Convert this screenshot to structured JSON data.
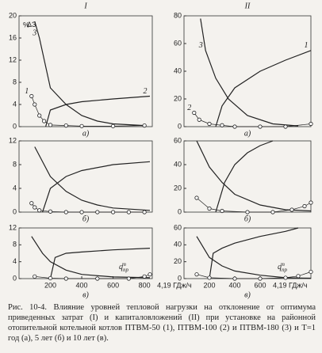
{
  "chart_data": [
    {
      "type": "line",
      "title": "I",
      "subtitle": "а)",
      "ylabel": "%",
      "annotations": [
        {
          "text": "ΔЗ"
        }
      ],
      "xlim": [
        0,
        850
      ],
      "ylim": [
        0,
        20
      ],
      "yticks": [
        0,
        4,
        8,
        12,
        16,
        20
      ],
      "series": [
        {
          "name": "3",
          "color": "#222",
          "x": [
            100,
            130,
            200,
            300,
            400,
            500,
            600,
            800
          ],
          "values": [
            19,
            16,
            7,
            4,
            2,
            1,
            0.5,
            0.2
          ]
        },
        {
          "name": "2",
          "color": "#222",
          "x": [
            170,
            200,
            300,
            400,
            600,
            835
          ],
          "values": [
            0,
            3,
            4,
            4.5,
            5,
            5.5
          ]
        },
        {
          "name": "1",
          "color": "#222",
          "marker": "circle",
          "x": [
            80,
            100,
            130,
            160,
            200,
            300,
            400,
            600,
            800
          ],
          "values": [
            5.5,
            4,
            2,
            1,
            0.3,
            0.2,
            0.1,
            0.1,
            0.2
          ]
        }
      ]
    },
    {
      "type": "line",
      "title": "II",
      "subtitle": "а)",
      "xlim": [
        0,
        1000
      ],
      "ylim": [
        0,
        80
      ],
      "yticks": [
        0,
        20,
        40,
        60,
        80
      ],
      "series": [
        {
          "name": "3",
          "color": "#222",
          "x": [
            130,
            170,
            250,
            350,
            500,
            700,
            900
          ],
          "values": [
            78,
            55,
            35,
            20,
            8,
            2,
            0.5
          ]
        },
        {
          "name": "1",
          "color": "#222",
          "x": [
            250,
            300,
            400,
            600,
            800,
            1000
          ],
          "values": [
            0,
            15,
            28,
            40,
            48,
            55
          ]
        },
        {
          "name": "2",
          "color": "#222",
          "marker": "circle",
          "x": [
            80,
            120,
            200,
            300,
            400,
            600,
            800,
            1000
          ],
          "values": [
            10,
            5,
            2,
            1,
            0,
            0,
            0,
            2
          ]
        }
      ]
    },
    {
      "type": "line",
      "subtitle": "б)",
      "xlim": [
        0,
        850
      ],
      "ylim": [
        0,
        12
      ],
      "yticks": [
        0,
        4,
        8,
        12
      ],
      "series": [
        {
          "color": "#222",
          "x": [
            100,
            200,
            300,
            400,
            500,
            600,
            835
          ],
          "values": [
            11,
            6,
            3.5,
            2,
            1.2,
            0.7,
            0.3
          ]
        },
        {
          "color": "#222",
          "x": [
            150,
            200,
            300,
            400,
            600,
            835
          ],
          "values": [
            0,
            4,
            6,
            7,
            8,
            8.5
          ]
        },
        {
          "color": "#222",
          "marker": "circle",
          "x": [
            80,
            100,
            130,
            200,
            300,
            400,
            500,
            600,
            700,
            800
          ],
          "values": [
            1.5,
            0.8,
            0.3,
            0.1,
            0,
            0,
            0,
            0,
            0,
            0
          ]
        }
      ]
    },
    {
      "type": "line",
      "subtitle": "б)",
      "xlim": [
        0,
        1000
      ],
      "ylim": [
        0,
        60
      ],
      "yticks": [
        0,
        20,
        40,
        60
      ],
      "series": [
        {
          "color": "#222",
          "x": [
            100,
            200,
            300,
            400,
            600,
            800,
            1000
          ],
          "values": [
            60,
            38,
            25,
            15,
            6,
            2,
            1
          ]
        },
        {
          "color": "#222",
          "x": [
            250,
            320,
            400,
            500,
            600,
            700
          ],
          "values": [
            0,
            25,
            40,
            50,
            56,
            60
          ]
        },
        {
          "color": "#222",
          "marker": "circle",
          "x": [
            100,
            200,
            300,
            500,
            700,
            850,
            950,
            1000
          ],
          "values": [
            12,
            3,
            1,
            0,
            0,
            2,
            5,
            8
          ]
        }
      ]
    },
    {
      "type": "line",
      "subtitle": "в)",
      "xlabel": "4,19 ГДж/ч",
      "annotations": [
        {
          "text": "q",
          "sub": "пр",
          "sup": "т"
        }
      ],
      "xlim": [
        0,
        850
      ],
      "ylim": [
        0,
        12
      ],
      "yticks": [
        0,
        4,
        8,
        12
      ],
      "xticks": [
        200,
        400,
        600,
        800
      ],
      "series": [
        {
          "color": "#222",
          "x": [
            80,
            150,
            200,
            300,
            400,
            600,
            835
          ],
          "values": [
            10,
            6,
            4,
            2,
            1,
            0.4,
            0.2
          ]
        },
        {
          "color": "#222",
          "x": [
            200,
            230,
            300,
            400,
            600,
            835
          ],
          "values": [
            0,
            5,
            6,
            6.3,
            6.8,
            7.2
          ]
        },
        {
          "color": "#222",
          "marker": "circle",
          "x": [
            100,
            200,
            300,
            500,
            700,
            800,
            835
          ],
          "values": [
            0.5,
            0.1,
            0,
            0,
            0,
            0.5,
            1
          ]
        }
      ]
    },
    {
      "type": "line",
      "subtitle": "в)",
      "xlabel": "4,19 ГДж/ч",
      "annotations": [
        {
          "text": "q",
          "sub": "пр",
          "sup": "т"
        }
      ],
      "xlim": [
        0,
        1000
      ],
      "ylim": [
        0,
        60
      ],
      "yticks": [
        0,
        20,
        40,
        60
      ],
      "xticks": [
        200,
        400,
        600
      ],
      "series": [
        {
          "color": "#222",
          "x": [
            100,
            200,
            300,
            400,
            600,
            800,
            1000
          ],
          "values": [
            50,
            25,
            15,
            9,
            4,
            1,
            0.5
          ]
        },
        {
          "color": "#222",
          "x": [
            200,
            230,
            300,
            400,
            600,
            800,
            900
          ],
          "values": [
            0,
            30,
            36,
            42,
            50,
            56,
            60
          ]
        },
        {
          "color": "#222",
          "marker": "circle",
          "x": [
            100,
            200,
            400,
            600,
            800,
            900,
            1000
          ],
          "values": [
            5,
            1,
            0,
            0,
            1,
            3,
            8
          ]
        }
      ]
    }
  ],
  "caption": "Рис. 10-4. Влияние уровней тепловой нагрузки на отклонение от оптимума приведенных затрат (I) и капиталовложений (II) при установке на районной отопительной котельной котлов ПТВМ-50 (1), ПТВМ-100 (2) и ПТВМ-180 (3) и T=1 год (а), 5 лет (б) и 10 лет (в)."
}
